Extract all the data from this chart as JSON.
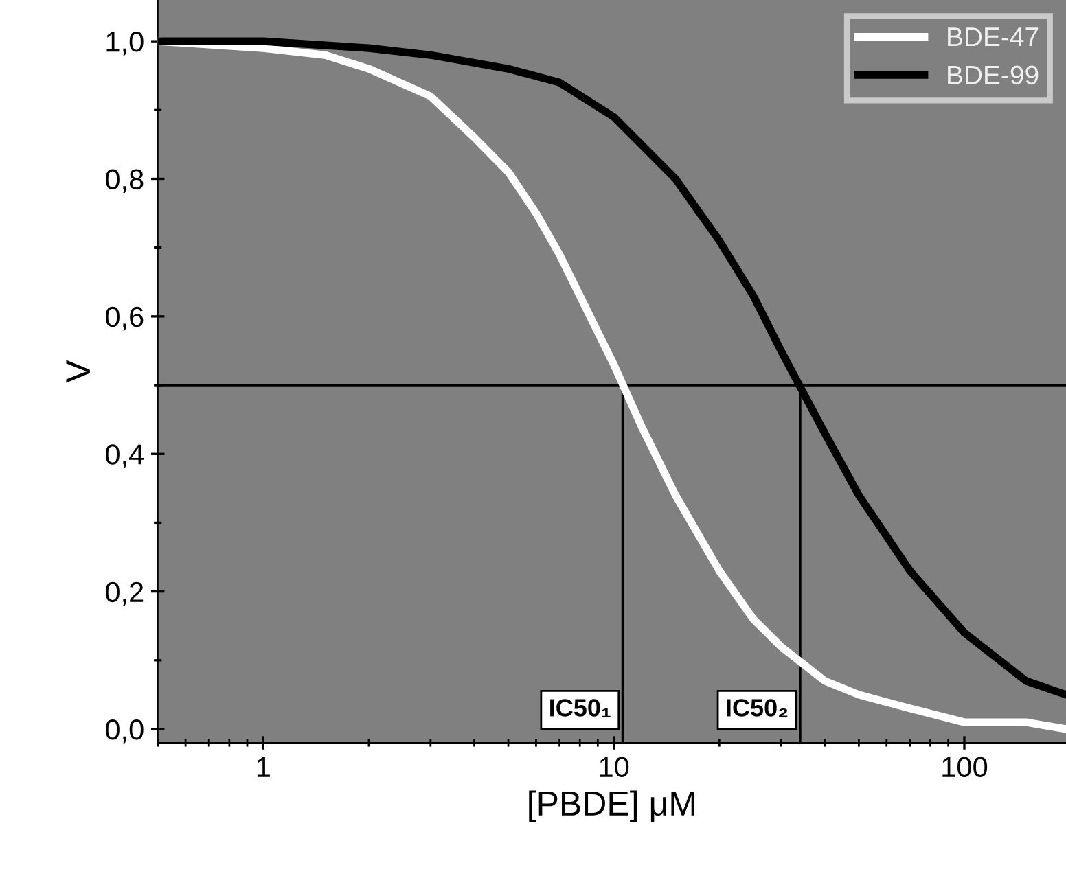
{
  "chart_data": {
    "type": "line",
    "xlabel": "[PBDE] μM",
    "ylabel": "V",
    "log": "x",
    "xlim": [
      0.5,
      195
    ],
    "xticks": [
      1,
      10,
      100
    ],
    "ylim": [
      -0.02,
      1.06
    ],
    "yticks": [
      {
        "value": 0,
        "label": "0,0"
      },
      {
        "value": 0.1,
        "label": null
      },
      {
        "value": 0.2,
        "label": "0,2"
      },
      {
        "value": 0.3,
        "label": null
      },
      {
        "value": 0.4,
        "label": "0,4"
      },
      {
        "value": 0.5,
        "label": null
      },
      {
        "value": 0.6,
        "label": "0,6"
      },
      {
        "value": 0.7,
        "label": null
      },
      {
        "value": 0.8,
        "label": "0,8"
      },
      {
        "value": 0.9,
        "label": null
      },
      {
        "value": 1.0,
        "label": "1,0"
      }
    ],
    "grid": false,
    "legend": "top right",
    "series": [
      {
        "name": "BDE-47",
        "color": "#ffffff",
        "x": [
          0.5,
          1,
          1.5,
          2,
          3,
          4,
          5,
          6,
          7,
          8,
          10,
          12,
          15,
          20,
          25,
          30,
          40,
          50,
          70,
          100,
          150,
          195
        ],
        "values": [
          1.0,
          0.99,
          0.98,
          0.96,
          0.92,
          0.86,
          0.81,
          0.75,
          0.69,
          0.63,
          0.53,
          0.44,
          0.34,
          0.23,
          0.16,
          0.12,
          0.07,
          0.05,
          0.03,
          0.01,
          0.01,
          0.0
        ]
      },
      {
        "name": "BDE-99",
        "color": "#000000",
        "x": [
          0.5,
          1,
          2,
          3,
          5,
          7,
          10,
          15,
          20,
          25,
          30,
          40,
          50,
          70,
          100,
          150,
          195
        ],
        "values": [
          1.0,
          1.0,
          0.99,
          0.98,
          0.96,
          0.94,
          0.89,
          0.8,
          0.71,
          0.63,
          0.55,
          0.43,
          0.34,
          0.23,
          0.14,
          0.07,
          0.05
        ]
      },
      {
        "color": "#000000",
        "x": [
          10.6,
          10.6
        ],
        "values": [
          -0.02,
          0.5
        ]
      },
      {
        "color": "#000000",
        "x": [
          34,
          34
        ],
        "values": [
          -0.02,
          0.5
        ]
      }
    ],
    "ref_lines": [
      {
        "axis": "y",
        "value": 0.5,
        "color": "#000000"
      }
    ],
    "annotations": [
      {
        "text": "IC50₁",
        "x": 10.6,
        "y": 0
      },
      {
        "text": "IC50₂",
        "x": 34,
        "y": 0
      }
    ]
  }
}
